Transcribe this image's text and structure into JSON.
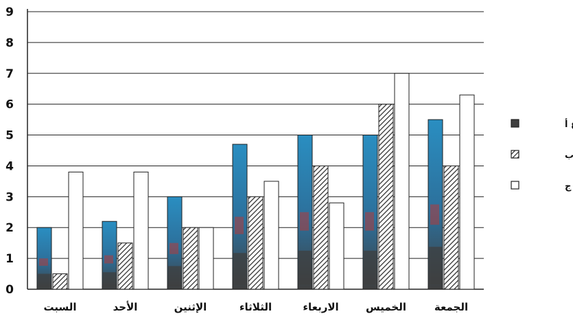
{
  "chart_data": {
    "type": "bar",
    "categories": [
      "السبت",
      "الأحد",
      "الإثنين",
      "الثلاثاء",
      "الاربعاء",
      "الخميس",
      "الجمعة"
    ],
    "series": [
      {
        "name": "الفرع أ",
        "values": [
          2,
          2.2,
          3,
          4.7,
          5,
          5,
          5.5
        ],
        "pattern": "mottled"
      },
      {
        "name": "الفرع ب",
        "values": [
          0.5,
          1.5,
          2,
          3,
          4,
          6,
          4
        ],
        "pattern": "hatch"
      },
      {
        "name": "الفرع ج",
        "values": [
          3.8,
          3.8,
          2,
          3.5,
          2.8,
          7,
          6.3
        ],
        "pattern": "empty"
      }
    ],
    "ylim": [
      0,
      9
    ],
    "yticks": [
      "0",
      "1",
      "2",
      "3",
      "4",
      "5",
      "6",
      "7",
      "8",
      "9"
    ],
    "grid": true,
    "legend_position": "right",
    "colors": {
      "series_a_top": "#2a8ec1",
      "series_a_bottom": "#3f3f3f",
      "series_a_accent": "#b23a3a",
      "series_b_fill": "#ffffff",
      "series_b_hatch": "#333333",
      "series_c_fill": "#ffffff",
      "outline": "#222222",
      "grid": "#222222",
      "text": "#111111"
    }
  }
}
